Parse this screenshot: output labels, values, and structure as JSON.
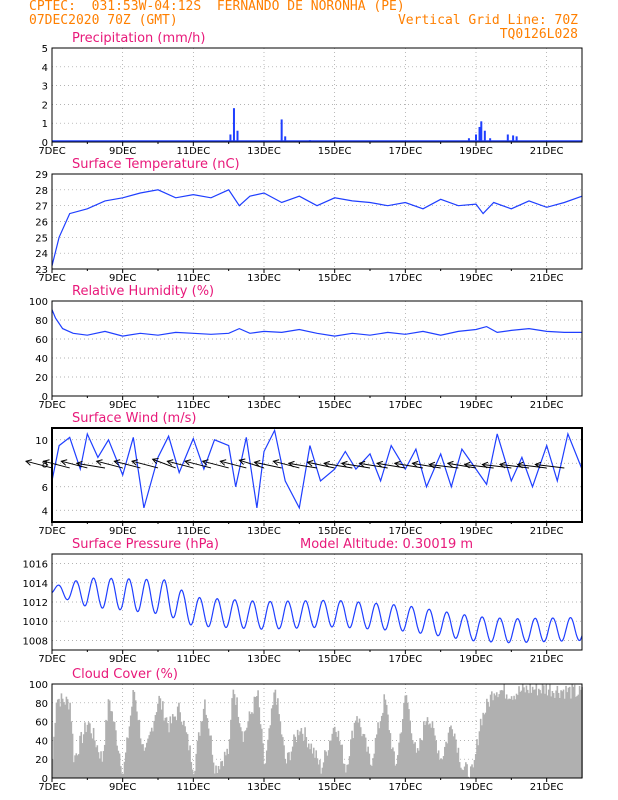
{
  "header": {
    "line1_left": "CPTEC:  031:53W-04:12S  FERNANDO DE NORONHA (PE)",
    "line2_left": "07DEC2020 70Z (GMT)",
    "line2_right": "Vertical Grid Line: 70Z",
    "line3_right": "TQ0126L028"
  },
  "colors": {
    "header": "#ff7f00",
    "title": "#e8197a",
    "line": "#1f3fff",
    "cloud": "#b0b0b0",
    "wind": "#000000"
  },
  "x_ticks": [
    "7DEC",
    "9DEC",
    "11DEC",
    "13DEC",
    "15DEC",
    "17DEC",
    "19DEC",
    "21DEC"
  ],
  "chart_data": [
    {
      "type": "bar",
      "title": "Precipitation (mm/h)",
      "ylim": [
        0,
        5
      ],
      "yticks": [
        "0",
        "1",
        "2",
        "3",
        "4",
        "5"
      ],
      "events": [
        {
          "day": 12.05,
          "value": 0.4
        },
        {
          "day": 12.15,
          "value": 1.8
        },
        {
          "day": 12.25,
          "value": 0.6
        },
        {
          "day": 13.5,
          "value": 1.2
        },
        {
          "day": 13.6,
          "value": 0.3
        },
        {
          "day": 14.3,
          "value": 0.1
        },
        {
          "day": 18.2,
          "value": 0.05
        },
        {
          "day": 18.8,
          "value": 0.2
        },
        {
          "day": 19.0,
          "value": 0.4
        },
        {
          "day": 19.1,
          "value": 0.8
        },
        {
          "day": 19.15,
          "value": 1.1
        },
        {
          "day": 19.25,
          "value": 0.6
        },
        {
          "day": 19.4,
          "value": 0.2
        },
        {
          "day": 19.9,
          "value": 0.4
        },
        {
          "day": 20.05,
          "value": 0.35
        },
        {
          "day": 20.15,
          "value": 0.3
        }
      ]
    },
    {
      "type": "line",
      "title": "Surface Temperature (nC)",
      "ylim": [
        23,
        29
      ],
      "yticks": [
        "23",
        "24",
        "25",
        "26",
        "27",
        "28",
        "29"
      ],
      "x": [
        7.0,
        7.2,
        7.5,
        8.0,
        8.5,
        9.0,
        9.5,
        10.0,
        10.5,
        11.0,
        11.5,
        12.0,
        12.3,
        12.6,
        13.0,
        13.5,
        14.0,
        14.5,
        15.0,
        15.5,
        16.0,
        16.5,
        17.0,
        17.5,
        18.0,
        18.5,
        19.0,
        19.2,
        19.5,
        20.0,
        20.5,
        21.0,
        21.5,
        22.0
      ],
      "y": [
        23.2,
        25.0,
        26.5,
        26.8,
        27.3,
        27.5,
        27.8,
        28.0,
        27.5,
        27.7,
        27.5,
        28.0,
        27.0,
        27.6,
        27.8,
        27.2,
        27.6,
        27.0,
        27.5,
        27.3,
        27.2,
        27.0,
        27.2,
        26.8,
        27.4,
        27.0,
        27.1,
        26.5,
        27.2,
        26.8,
        27.3,
        26.9,
        27.2,
        27.6
      ]
    },
    {
      "type": "line",
      "title": "Relative Humidity (%)",
      "ylim": [
        0,
        100
      ],
      "yticks": [
        "0",
        "20",
        "40",
        "60",
        "80",
        "100"
      ],
      "x": [
        7.0,
        7.1,
        7.3,
        7.6,
        8.0,
        8.5,
        9.0,
        9.5,
        10.0,
        10.5,
        11.0,
        11.5,
        12.0,
        12.3,
        12.6,
        13.0,
        13.5,
        14.0,
        14.5,
        15.0,
        15.5,
        16.0,
        16.5,
        17.0,
        17.5,
        18.0,
        18.5,
        19.0,
        19.3,
        19.6,
        20.0,
        20.5,
        21.0,
        21.5,
        22.0
      ],
      "y": [
        91,
        82,
        71,
        66,
        64,
        68,
        63,
        66,
        64,
        67,
        66,
        65,
        66,
        71,
        66,
        68,
        67,
        70,
        66,
        63,
        66,
        64,
        67,
        65,
        68,
        64,
        68,
        70,
        73,
        67,
        69,
        71,
        68,
        67,
        67
      ]
    },
    {
      "type": "line",
      "title": "Surface Wind (m/s)",
      "ylim": [
        3,
        11
      ],
      "yticks": [
        "4",
        "6",
        "8",
        "10"
      ],
      "x": [
        7.0,
        7.2,
        7.5,
        7.8,
        8.0,
        8.3,
        8.6,
        9.0,
        9.3,
        9.6,
        10.0,
        10.3,
        10.6,
        11.0,
        11.3,
        11.6,
        12.0,
        12.2,
        12.5,
        12.8,
        13.0,
        13.3,
        13.6,
        14.0,
        14.3,
        14.6,
        15.0,
        15.3,
        15.6,
        16.0,
        16.3,
        16.6,
        17.0,
        17.3,
        17.6,
        18.0,
        18.3,
        18.6,
        19.0,
        19.3,
        19.6,
        20.0,
        20.3,
        20.6,
        21.0,
        21.3,
        21.6,
        22.0
      ],
      "y": [
        6.5,
        9.5,
        10.2,
        7.5,
        10.5,
        8.5,
        10.0,
        7.0,
        10.2,
        4.2,
        8.5,
        10.3,
        7.2,
        10.1,
        7.5,
        10.0,
        9.5,
        6.0,
        10.2,
        4.2,
        9.0,
        10.8,
        6.5,
        4.2,
        9.5,
        6.5,
        7.5,
        9.0,
        7.5,
        8.8,
        6.5,
        9.5,
        7.5,
        9.2,
        6.0,
        8.8,
        6.0,
        9.2,
        7.5,
        6.2,
        10.5,
        6.5,
        8.5,
        6.0,
        9.5,
        6.5,
        10.5,
        7.5
      ],
      "barbs": [
        {
          "day": 7.0,
          "dir": 300
        },
        {
          "day": 7.5,
          "dir": 300
        },
        {
          "day": 8.0,
          "dir": 300
        },
        {
          "day": 8.5,
          "dir": 290
        },
        {
          "day": 9.0,
          "dir": 300
        },
        {
          "day": 9.5,
          "dir": 300
        },
        {
          "day": 10.0,
          "dir": 300
        },
        {
          "day": 10.5,
          "dir": 310
        },
        {
          "day": 11.0,
          "dir": 300
        },
        {
          "day": 11.5,
          "dir": 300
        },
        {
          "day": 12.0,
          "dir": 300
        },
        {
          "day": 12.5,
          "dir": 300
        },
        {
          "day": 13.0,
          "dir": 305
        },
        {
          "day": 13.5,
          "dir": 295
        },
        {
          "day": 14.0,
          "dir": 300
        },
        {
          "day": 14.5,
          "dir": 290
        },
        {
          "day": 15.0,
          "dir": 295
        },
        {
          "day": 15.5,
          "dir": 290
        },
        {
          "day": 16.0,
          "dir": 290
        },
        {
          "day": 16.5,
          "dir": 290
        },
        {
          "day": 17.0,
          "dir": 290
        },
        {
          "day": 17.5,
          "dir": 290
        },
        {
          "day": 18.0,
          "dir": 290
        },
        {
          "day": 18.5,
          "dir": 285
        },
        {
          "day": 19.0,
          "dir": 290
        },
        {
          "day": 19.5,
          "dir": 285
        },
        {
          "day": 20.0,
          "dir": 285
        },
        {
          "day": 20.5,
          "dir": 285
        },
        {
          "day": 21.0,
          "dir": 285
        },
        {
          "day": 21.5,
          "dir": 285
        }
      ]
    },
    {
      "type": "line",
      "title": "Surface Pressure (hPa)",
      "subtitle": "Model Altitude: 0.30019 m",
      "ylim": [
        1007,
        1017
      ],
      "yticks": [
        "1008",
        "1010",
        "1012",
        "1014",
        "1016"
      ],
      "trend": [
        [
          7.0,
          1013.2
        ],
        [
          9.0,
          1012.8
        ],
        [
          10.2,
          1012.5
        ],
        [
          11.0,
          1011.0
        ],
        [
          13.0,
          1010.6
        ],
        [
          15.0,
          1010.8
        ],
        [
          17.0,
          1010.3
        ],
        [
          19.0,
          1009.2
        ],
        [
          20.0,
          1009.0
        ],
        [
          22.0,
          1009.2
        ]
      ],
      "amplitude": [
        [
          7.0,
          0.4
        ],
        [
          8.0,
          1.5
        ],
        [
          10.2,
          1.8
        ],
        [
          11.0,
          1.5
        ],
        [
          22.0,
          1.2
        ]
      ]
    },
    {
      "type": "area",
      "title": "Cloud Cover (%)",
      "ylim": [
        0,
        100
      ],
      "yticks": [
        "0",
        "20",
        "40",
        "60",
        "80",
        "100"
      ],
      "x": [
        7.0,
        7.1,
        7.5,
        7.6,
        8.0,
        8.4,
        8.6,
        9.0,
        9.3,
        9.6,
        10.0,
        10.3,
        10.6,
        11.0,
        11.3,
        11.6,
        12.0,
        12.1,
        12.4,
        12.8,
        13.0,
        13.3,
        13.6,
        14.0,
        14.3,
        14.6,
        15.0,
        15.3,
        15.6,
        16.0,
        16.4,
        16.7,
        17.0,
        17.3,
        17.6,
        18.0,
        18.3,
        18.6,
        18.9,
        19.1,
        19.5,
        20.0,
        20.5,
        21.0,
        21.5,
        22.0
      ],
      "y": [
        20,
        85,
        80,
        20,
        60,
        20,
        85,
        5,
        95,
        20,
        85,
        55,
        75,
        10,
        85,
        10,
        30,
        100,
        45,
        90,
        10,
        95,
        15,
        55,
        35,
        10,
        60,
        10,
        70,
        15,
        85,
        10,
        90,
        20,
        70,
        20,
        60,
        10,
        5,
        60,
        95,
        90,
        95,
        95,
        93,
        90
      ]
    }
  ]
}
